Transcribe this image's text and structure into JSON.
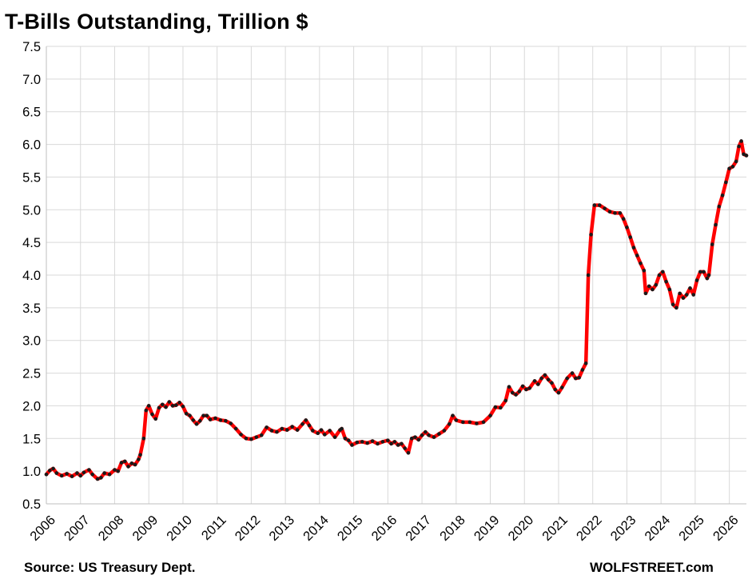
{
  "title": "T-Bills Outstanding, Trillion $",
  "source": "Source: US Treasury Dept.",
  "brand": "WOLFSTREET.com",
  "colors": {
    "line": "#ff0000",
    "marker": "#1a1a1a",
    "grid": "#d9d9d9",
    "axis": "#bfbfbf"
  },
  "chart_data": {
    "type": "line",
    "ylim": [
      0.5,
      7.5
    ],
    "yticks": [
      "0.5",
      "1.0",
      "1.5",
      "2.0",
      "2.5",
      "3.0",
      "3.5",
      "4.0",
      "4.5",
      "5.0",
      "5.5",
      "6.0",
      "6.5",
      "7.0",
      "7.5"
    ],
    "xlim": [
      2006,
      2026.5
    ],
    "xticks": [
      "2006",
      "2007",
      "2008",
      "2009",
      "2010",
      "2011",
      "2012",
      "2013",
      "2014",
      "2015",
      "2016",
      "2017",
      "2018",
      "2019",
      "2020",
      "2021",
      "2022",
      "2023",
      "2024",
      "2025",
      "2026"
    ],
    "grid": true,
    "legend": "none",
    "series": [
      {
        "points": [
          [
            2006.0,
            0.95
          ],
          [
            2006.1,
            1.01
          ],
          [
            2006.2,
            1.04
          ],
          [
            2006.3,
            0.97
          ],
          [
            2006.45,
            0.93
          ],
          [
            2006.6,
            0.96
          ],
          [
            2006.75,
            0.92
          ],
          [
            2006.9,
            0.97
          ],
          [
            2007.0,
            0.93
          ],
          [
            2007.1,
            0.98
          ],
          [
            2007.25,
            1.02
          ],
          [
            2007.35,
            0.95
          ],
          [
            2007.5,
            0.88
          ],
          [
            2007.6,
            0.9
          ],
          [
            2007.7,
            0.97
          ],
          [
            2007.85,
            0.95
          ],
          [
            2008.0,
            1.02
          ],
          [
            2008.1,
            1.0
          ],
          [
            2008.2,
            1.13
          ],
          [
            2008.3,
            1.15
          ],
          [
            2008.4,
            1.07
          ],
          [
            2008.5,
            1.12
          ],
          [
            2008.6,
            1.1
          ],
          [
            2008.7,
            1.18
          ],
          [
            2008.75,
            1.25
          ],
          [
            2008.85,
            1.5
          ],
          [
            2008.92,
            1.93
          ],
          [
            2009.0,
            2.0
          ],
          [
            2009.1,
            1.87
          ],
          [
            2009.2,
            1.8
          ],
          [
            2009.3,
            1.97
          ],
          [
            2009.4,
            2.02
          ],
          [
            2009.5,
            1.98
          ],
          [
            2009.6,
            2.06
          ],
          [
            2009.7,
            2.0
          ],
          [
            2009.8,
            2.01
          ],
          [
            2009.9,
            2.05
          ],
          [
            2010.0,
            1.99
          ],
          [
            2010.1,
            1.88
          ],
          [
            2010.2,
            1.85
          ],
          [
            2010.3,
            1.78
          ],
          [
            2010.4,
            1.72
          ],
          [
            2010.5,
            1.77
          ],
          [
            2010.6,
            1.85
          ],
          [
            2010.7,
            1.85
          ],
          [
            2010.8,
            1.79
          ],
          [
            2010.95,
            1.81
          ],
          [
            2011.1,
            1.78
          ],
          [
            2011.25,
            1.77
          ],
          [
            2011.4,
            1.73
          ],
          [
            2011.55,
            1.65
          ],
          [
            2011.7,
            1.56
          ],
          [
            2011.85,
            1.5
          ],
          [
            2012.0,
            1.49
          ],
          [
            2012.15,
            1.52
          ],
          [
            2012.3,
            1.55
          ],
          [
            2012.45,
            1.67
          ],
          [
            2012.6,
            1.62
          ],
          [
            2012.75,
            1.6
          ],
          [
            2012.9,
            1.65
          ],
          [
            2013.05,
            1.63
          ],
          [
            2013.2,
            1.68
          ],
          [
            2013.35,
            1.63
          ],
          [
            2013.5,
            1.72
          ],
          [
            2013.6,
            1.78
          ],
          [
            2013.7,
            1.7
          ],
          [
            2013.8,
            1.62
          ],
          [
            2013.95,
            1.58
          ],
          [
            2014.05,
            1.63
          ],
          [
            2014.15,
            1.56
          ],
          [
            2014.3,
            1.62
          ],
          [
            2014.45,
            1.52
          ],
          [
            2014.6,
            1.63
          ],
          [
            2014.65,
            1.65
          ],
          [
            2014.75,
            1.5
          ],
          [
            2014.85,
            1.47
          ],
          [
            2014.95,
            1.4
          ],
          [
            2015.1,
            1.44
          ],
          [
            2015.25,
            1.45
          ],
          [
            2015.4,
            1.43
          ],
          [
            2015.55,
            1.46
          ],
          [
            2015.7,
            1.42
          ],
          [
            2015.85,
            1.45
          ],
          [
            2016.0,
            1.47
          ],
          [
            2016.1,
            1.42
          ],
          [
            2016.2,
            1.45
          ],
          [
            2016.3,
            1.4
          ],
          [
            2016.4,
            1.42
          ],
          [
            2016.5,
            1.35
          ],
          [
            2016.6,
            1.28
          ],
          [
            2016.7,
            1.5
          ],
          [
            2016.8,
            1.52
          ],
          [
            2016.9,
            1.48
          ],
          [
            2017.0,
            1.55
          ],
          [
            2017.1,
            1.6
          ],
          [
            2017.2,
            1.55
          ],
          [
            2017.35,
            1.52
          ],
          [
            2017.5,
            1.57
          ],
          [
            2017.65,
            1.62
          ],
          [
            2017.8,
            1.72
          ],
          [
            2017.9,
            1.85
          ],
          [
            2018.0,
            1.78
          ],
          [
            2018.2,
            1.75
          ],
          [
            2018.4,
            1.75
          ],
          [
            2018.6,
            1.73
          ],
          [
            2018.8,
            1.75
          ],
          [
            2019.0,
            1.85
          ],
          [
            2019.15,
            1.98
          ],
          [
            2019.3,
            1.97
          ],
          [
            2019.45,
            2.08
          ],
          [
            2019.55,
            2.29
          ],
          [
            2019.65,
            2.2
          ],
          [
            2019.75,
            2.17
          ],
          [
            2019.85,
            2.22
          ],
          [
            2019.95,
            2.3
          ],
          [
            2020.05,
            2.25
          ],
          [
            2020.15,
            2.27
          ],
          [
            2020.3,
            2.38
          ],
          [
            2020.4,
            2.33
          ],
          [
            2020.5,
            2.42
          ],
          [
            2020.6,
            2.47
          ],
          [
            2020.7,
            2.4
          ],
          [
            2020.8,
            2.35
          ],
          [
            2020.9,
            2.25
          ],
          [
            2021.0,
            2.2
          ],
          [
            2021.1,
            2.28
          ],
          [
            2021.25,
            2.42
          ],
          [
            2021.4,
            2.5
          ],
          [
            2021.5,
            2.42
          ],
          [
            2021.6,
            2.43
          ],
          [
            2021.7,
            2.55
          ],
          [
            2021.8,
            2.65
          ],
          [
            2021.87,
            4.0
          ],
          [
            2021.95,
            4.62
          ],
          [
            2022.05,
            5.07
          ],
          [
            2022.2,
            5.07
          ],
          [
            2022.35,
            5.02
          ],
          [
            2022.5,
            4.97
          ],
          [
            2022.65,
            4.95
          ],
          [
            2022.8,
            4.95
          ],
          [
            2022.9,
            4.86
          ],
          [
            2023.0,
            4.73
          ],
          [
            2023.1,
            4.58
          ],
          [
            2023.2,
            4.42
          ],
          [
            2023.3,
            4.3
          ],
          [
            2023.4,
            4.18
          ],
          [
            2023.5,
            4.07
          ],
          [
            2023.55,
            3.72
          ],
          [
            2023.65,
            3.83
          ],
          [
            2023.75,
            3.78
          ],
          [
            2023.85,
            3.85
          ],
          [
            2023.95,
            4.0
          ],
          [
            2024.05,
            4.05
          ],
          [
            2024.15,
            3.9
          ],
          [
            2024.25,
            3.78
          ],
          [
            2024.35,
            3.55
          ],
          [
            2024.45,
            3.5
          ],
          [
            2024.55,
            3.72
          ],
          [
            2024.65,
            3.65
          ],
          [
            2024.75,
            3.7
          ],
          [
            2024.85,
            3.8
          ],
          [
            2024.95,
            3.7
          ],
          [
            2025.05,
            3.92
          ],
          [
            2025.15,
            4.05
          ],
          [
            2025.25,
            4.05
          ],
          [
            2025.35,
            3.95
          ],
          [
            2025.4,
            4.0
          ],
          [
            2025.5,
            4.47
          ],
          [
            2025.6,
            4.77
          ],
          [
            2025.7,
            5.05
          ],
          [
            2025.8,
            5.22
          ],
          [
            2025.9,
            5.42
          ],
          [
            2026.0,
            5.63
          ],
          [
            2026.1,
            5.66
          ],
          [
            2026.2,
            5.74
          ],
          [
            2026.28,
            5.97
          ],
          [
            2026.35,
            6.05
          ],
          [
            2026.42,
            5.85
          ],
          [
            2026.5,
            5.83
          ]
        ]
      }
    ]
  }
}
